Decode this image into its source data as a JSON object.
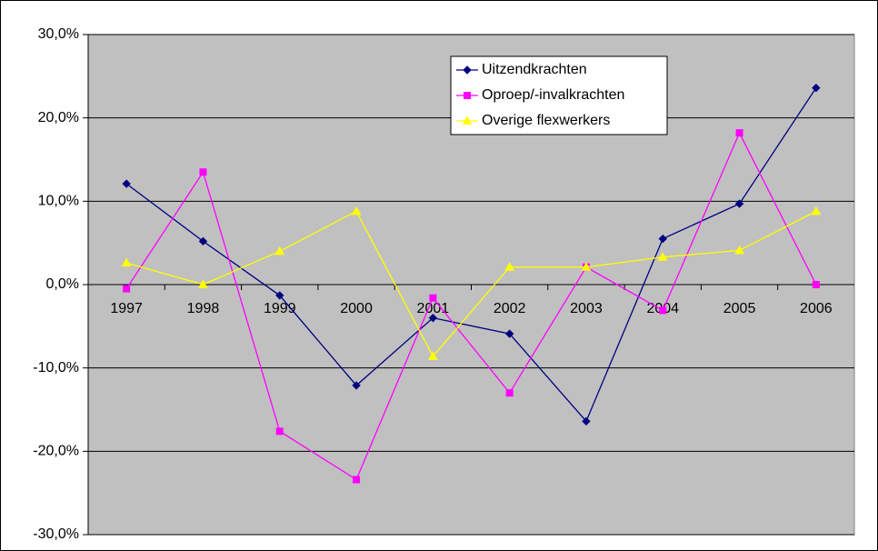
{
  "chart_data": {
    "type": "line",
    "categories": [
      "1997",
      "1998",
      "1999",
      "2000",
      "2001",
      "2002",
      "2003",
      "2004",
      "2005",
      "2006"
    ],
    "series": [
      {
        "name": "Uitzendkrachten",
        "color": "#000080",
        "marker": "diamond",
        "values": [
          12.1,
          5.2,
          -1.3,
          -12.1,
          -4.0,
          -5.9,
          -16.4,
          5.5,
          9.7,
          23.6
        ]
      },
      {
        "name": "Oproep/-invalkrachten",
        "color": "#ff00ff",
        "marker": "square",
        "values": [
          -0.5,
          13.5,
          -17.6,
          -23.4,
          -1.6,
          -13.0,
          2.1,
          -3.1,
          18.2,
          0
        ]
      },
      {
        "name": "Overige flexwerkers",
        "color": "#ffff00",
        "marker": "triangle",
        "values": [
          2.6,
          0,
          4.0,
          8.8,
          -8.6,
          2.1,
          2.1,
          3.3,
          4.1,
          8.8
        ]
      }
    ],
    "ylim": [
      -30,
      30
    ],
    "yticks": [
      {
        "value": -30,
        "label": "-30,0%"
      },
      {
        "value": -20,
        "label": "-20,0%"
      },
      {
        "value": -10,
        "label": "-10,0%"
      },
      {
        "value": 0,
        "label": "0,0%"
      },
      {
        "value": 10,
        "label": "10,0%"
      },
      {
        "value": 20,
        "label": "20,0%"
      },
      {
        "value": 30,
        "label": "30,0%"
      }
    ],
    "grid": true,
    "legend": "top",
    "background": "#c0c0c0"
  }
}
